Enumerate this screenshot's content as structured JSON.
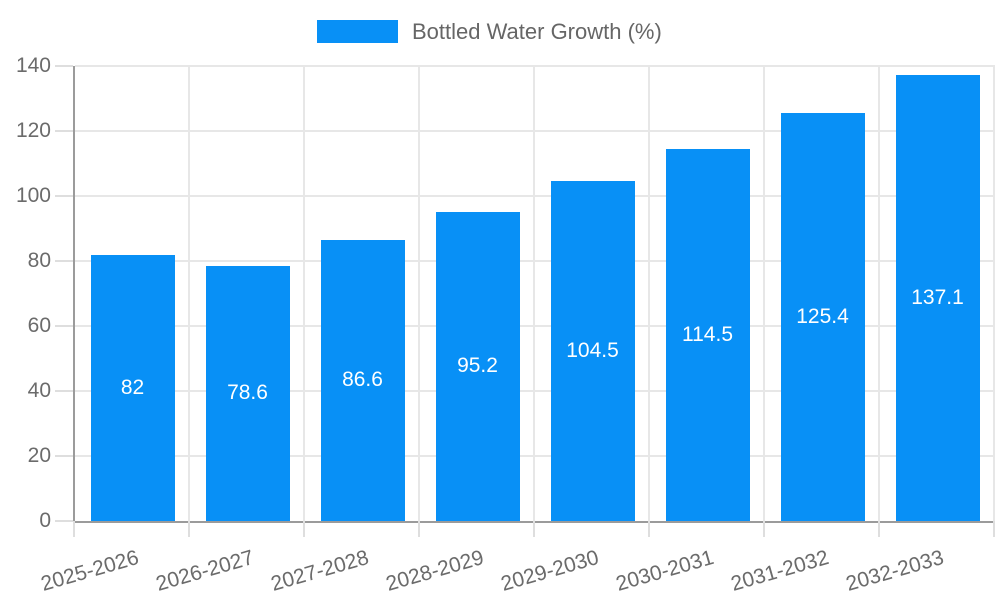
{
  "legend": {
    "label": "Bottled Water Growth (%)"
  },
  "colors": {
    "bar": "#0890f6",
    "grid": "#e7e7e7",
    "axis": "#9b9b9b",
    "tick": "#dedede",
    "tick_label": "#6b6b6b",
    "legend_text": "#666666",
    "value_label": "#ffffff",
    "background": "#ffffff"
  },
  "chart_data": {
    "type": "bar",
    "title": "Bottled Water Growth (%)",
    "categories": [
      "2025-2026",
      "2026-2027",
      "2027-2028",
      "2028-2029",
      "2029-2030",
      "2030-2031",
      "2031-2032",
      "2032-2033"
    ],
    "values": [
      82,
      78.6,
      86.6,
      95.2,
      104.5,
      114.5,
      125.4,
      137.1
    ],
    "value_labels": [
      "82",
      "78.6",
      "86.6",
      "95.2",
      "104.5",
      "114.5",
      "125.4",
      "137.1"
    ],
    "series_name": "Bottled Water Growth (%)",
    "xlabel": "",
    "ylabel": "",
    "ylim": [
      0,
      140
    ],
    "ytick_step": 20,
    "yticks": [
      0,
      20,
      40,
      60,
      80,
      100,
      120,
      140
    ],
    "grid": true,
    "legend_position": "top",
    "value_labels_position": "center-inside",
    "xlabel_rotation_deg": -16
  }
}
